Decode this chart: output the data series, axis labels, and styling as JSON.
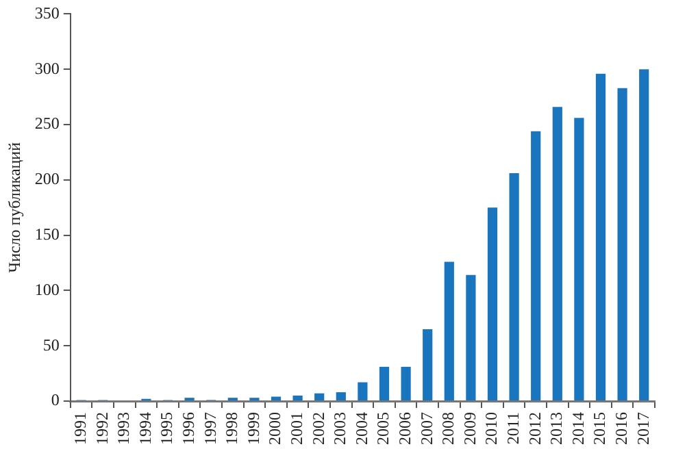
{
  "chart_data": {
    "type": "bar",
    "ylabel": "Число публикаций",
    "categories": [
      "1991",
      "1992",
      "1993",
      "1994",
      "1995",
      "1996",
      "1997",
      "1998",
      "1999",
      "2000",
      "2001",
      "2002",
      "2003",
      "2004",
      "2005",
      "2006",
      "2007",
      "2008",
      "2009",
      "2010",
      "2011",
      "2012",
      "2013",
      "2014",
      "2015",
      "2016",
      "2017"
    ],
    "values": [
      1,
      1,
      0,
      2,
      1,
      3,
      1,
      3,
      3,
      4,
      5,
      7,
      8,
      17,
      31,
      31,
      65,
      126,
      114,
      175,
      206,
      244,
      266,
      256,
      296,
      283,
      300
    ],
    "color": "#1a75bf",
    "ylim": [
      0,
      350
    ],
    "yticks": [
      0,
      50,
      100,
      150,
      200,
      250,
      300,
      350
    ],
    "grid": false,
    "legend": false
  }
}
